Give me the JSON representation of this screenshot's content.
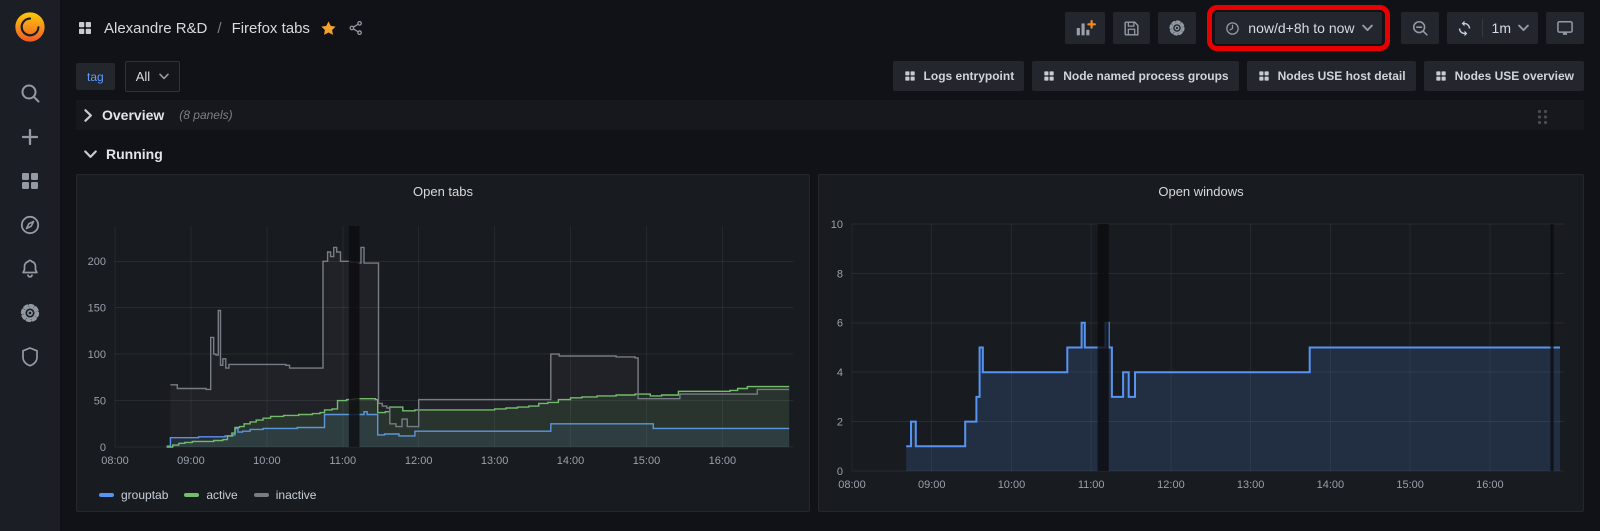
{
  "page": {
    "background": "#111217",
    "annotation_highlight_color": "#e80000"
  },
  "sidebar": {
    "logo": "grafana-logo",
    "items": [
      "search",
      "create",
      "dashboards",
      "explore",
      "alerting",
      "configuration",
      "server-admin"
    ]
  },
  "header": {
    "breadcrumb": {
      "icon": "apps-grid-icon",
      "folder": "Alexandre R&D",
      "separator": "/",
      "dashboard": "Firefox tabs",
      "starred": true
    },
    "toolbar": {
      "add_panel_icon": "bar-chart-plus-icon",
      "save_icon": "save-icon",
      "settings_icon": "gear-icon",
      "time_picker": {
        "icon": "clock-icon",
        "label": "now/d+8h to now",
        "highlighted": true
      },
      "zoom_out_icon": "magnifier-minus-icon",
      "refresh": {
        "icon": "refresh-icon",
        "interval": "1m"
      },
      "kiosk_icon": "monitor-icon"
    }
  },
  "submenu": {
    "tag_filter": {
      "label": "tag",
      "value": "All"
    },
    "dashboard_links": [
      "Logs entrypoint",
      "Node named process groups",
      "Nodes USE host detail",
      "Nodes USE overview"
    ]
  },
  "rows": [
    {
      "title": "Overview",
      "meta": "(8 panels)",
      "collapsed": true
    },
    {
      "title": "Running",
      "collapsed": false
    }
  ],
  "chart_data": [
    {
      "type": "line",
      "step": true,
      "title": "Open tabs",
      "xlabel": "",
      "ylabel": "",
      "xlim": [
        8,
        16.93
      ],
      "ylim": [
        0,
        238
      ],
      "yticks": [
        0,
        50,
        100,
        150,
        200
      ],
      "xtick_values": [
        8,
        9,
        10,
        11,
        12,
        13,
        14,
        15,
        16
      ],
      "xtick_labels": [
        "08:00",
        "09:00",
        "10:00",
        "11:00",
        "12:00",
        "13:00",
        "14:00",
        "15:00",
        "16:00"
      ],
      "grid": true,
      "legend_position": "bottom",
      "line_width": 1.4,
      "gaps": [
        [
          11.08,
          11.22
        ]
      ],
      "series": [
        {
          "name": "grouptab",
          "color": "#5794F2",
          "fill": "rgba(87,148,242,0.10)",
          "points": [
            [
              8.68,
              1
            ],
            [
              8.73,
              10
            ],
            [
              9.1,
              11
            ],
            [
              9.45,
              12
            ],
            [
              9.55,
              13
            ],
            [
              9.58,
              20
            ],
            [
              9.62,
              16
            ],
            [
              9.68,
              17
            ],
            [
              9.78,
              19
            ],
            [
              9.95,
              20
            ],
            [
              10.4,
              21
            ],
            [
              10.73,
              21
            ],
            [
              10.76,
              35
            ],
            [
              11.22,
              35
            ],
            [
              11.28,
              38
            ],
            [
              11.32,
              35
            ],
            [
              11.43,
              35
            ],
            [
              11.46,
              13
            ],
            [
              11.55,
              14
            ],
            [
              11.7,
              14
            ],
            [
              11.74,
              12
            ],
            [
              11.95,
              17
            ],
            [
              13.7,
              17
            ],
            [
              13.74,
              25
            ],
            [
              15.05,
              25
            ],
            [
              15.09,
              20
            ],
            [
              16.88,
              20
            ]
          ]
        },
        {
          "name": "active",
          "color": "#73BF69",
          "fill": "rgba(115,191,105,0.12)",
          "points": [
            [
              8.68,
              0
            ],
            [
              8.76,
              2
            ],
            [
              8.84,
              4
            ],
            [
              8.92,
              5
            ],
            [
              9.02,
              6
            ],
            [
              9.2,
              6
            ],
            [
              9.3,
              7
            ],
            [
              9.42,
              8
            ],
            [
              9.48,
              12
            ],
            [
              9.54,
              15
            ],
            [
              9.58,
              21
            ],
            [
              9.64,
              22
            ],
            [
              9.7,
              25
            ],
            [
              9.78,
              27
            ],
            [
              9.86,
              29
            ],
            [
              9.95,
              31
            ],
            [
              10.05,
              33
            ],
            [
              10.22,
              34
            ],
            [
              10.42,
              35
            ],
            [
              10.6,
              36
            ],
            [
              10.7,
              37
            ],
            [
              10.76,
              40
            ],
            [
              10.86,
              41
            ],
            [
              10.93,
              50
            ],
            [
              11.05,
              51
            ],
            [
              11.15,
              52
            ],
            [
              11.3,
              52
            ],
            [
              11.43,
              51
            ],
            [
              11.46,
              37
            ],
            [
              11.56,
              38
            ],
            [
              11.62,
              43
            ],
            [
              11.74,
              43
            ],
            [
              11.79,
              39
            ],
            [
              11.95,
              40
            ],
            [
              12.8,
              40
            ],
            [
              13.0,
              41
            ],
            [
              13.15,
              42
            ],
            [
              13.3,
              43
            ],
            [
              13.45,
              44
            ],
            [
              13.58,
              47
            ],
            [
              13.7,
              48
            ],
            [
              13.84,
              51
            ],
            [
              14.0,
              53
            ],
            [
              14.15,
              54
            ],
            [
              14.35,
              55
            ],
            [
              14.6,
              56
            ],
            [
              14.85,
              57
            ],
            [
              15.05,
              55
            ],
            [
              15.2,
              56
            ],
            [
              15.42,
              60
            ],
            [
              15.95,
              60
            ],
            [
              16.1,
              61
            ],
            [
              16.2,
              63
            ],
            [
              16.33,
              65
            ],
            [
              16.88,
              65
            ]
          ]
        },
        {
          "name": "inactive",
          "color": "#787c84",
          "fill": "rgba(130,133,140,0.08)",
          "points": [
            [
              8.73,
              67
            ],
            [
              8.82,
              63
            ],
            [
              9.2,
              62
            ],
            [
              9.26,
              118
            ],
            [
              9.3,
              100
            ],
            [
              9.33,
              99
            ],
            [
              9.36,
              147
            ],
            [
              9.39,
              88
            ],
            [
              9.42,
              95
            ],
            [
              9.46,
              85
            ],
            [
              9.5,
              89
            ],
            [
              10.25,
              88
            ],
            [
              10.3,
              85
            ],
            [
              10.7,
              85
            ],
            [
              10.74,
              200
            ],
            [
              10.8,
              210
            ],
            [
              10.84,
              205
            ],
            [
              10.88,
              215
            ],
            [
              10.92,
              210
            ],
            [
              10.97,
              200
            ],
            [
              11.1,
              199
            ],
            [
              11.2,
              198
            ],
            [
              11.24,
              215
            ],
            [
              11.28,
              198
            ],
            [
              11.44,
              198
            ],
            [
              11.47,
              47
            ],
            [
              11.52,
              44
            ],
            [
              11.58,
              42
            ],
            [
              11.62,
              25
            ],
            [
              11.7,
              22
            ],
            [
              11.78,
              30
            ],
            [
              11.85,
              22
            ],
            [
              12.0,
              51
            ],
            [
              13.7,
              51
            ],
            [
              13.74,
              100
            ],
            [
              13.85,
              98
            ],
            [
              14.6,
              97
            ],
            [
              14.85,
              96
            ],
            [
              14.89,
              52
            ],
            [
              15.4,
              52
            ],
            [
              15.44,
              57
            ],
            [
              16.4,
              57
            ],
            [
              16.46,
              62
            ],
            [
              16.88,
              62
            ]
          ]
        }
      ]
    },
    {
      "type": "line",
      "step": true,
      "title": "Open windows",
      "xlabel": "",
      "ylabel": "",
      "xlim": [
        8,
        16.93
      ],
      "ylim": [
        0,
        10
      ],
      "yticks": [
        0,
        2,
        4,
        6,
        8,
        10
      ],
      "xtick_values": [
        8,
        9,
        10,
        11,
        12,
        13,
        14,
        15,
        16
      ],
      "xtick_labels": [
        "08:00",
        "09:00",
        "10:00",
        "11:00",
        "12:00",
        "13:00",
        "14:00",
        "15:00",
        "16:00"
      ],
      "grid": true,
      "legend_position": "none",
      "legend": false,
      "line_width": 2,
      "gaps": [
        [
          11.08,
          11.22
        ],
        [
          16.76,
          16.8
        ]
      ],
      "series": [
        {
          "name": "open windows",
          "color": "#5794F2",
          "fill": "rgba(87,148,242,0.16)",
          "points": [
            [
              8.68,
              1
            ],
            [
              8.74,
              2
            ],
            [
              8.8,
              1
            ],
            [
              9.42,
              2
            ],
            [
              9.56,
              3
            ],
            [
              9.6,
              5
            ],
            [
              9.64,
              4
            ],
            [
              10.66,
              4
            ],
            [
              10.7,
              5
            ],
            [
              10.88,
              6
            ],
            [
              10.92,
              5
            ],
            [
              11.15,
              5
            ],
            [
              11.18,
              6
            ],
            [
              11.22,
              5
            ],
            [
              11.26,
              3
            ],
            [
              11.4,
              4
            ],
            [
              11.47,
              3
            ],
            [
              11.55,
              4
            ],
            [
              13.7,
              4
            ],
            [
              13.74,
              5
            ],
            [
              16.88,
              5
            ]
          ]
        }
      ]
    }
  ]
}
